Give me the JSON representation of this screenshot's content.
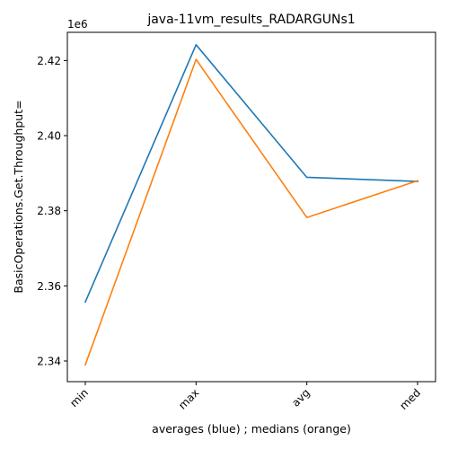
{
  "chart_data": {
    "type": "line",
    "title": "java-11vm_results_RADARGUNs1",
    "xlabel": "averages (blue) ; medians (orange)",
    "ylabel": "BasicOperations.Get.Throughput=",
    "y_offset_label": "1e6",
    "categories": [
      "min",
      "max",
      "avg",
      "med"
    ],
    "ylim": [
      2.3345,
      2.4275
    ],
    "yticks": [
      2.34,
      2.36,
      2.38,
      2.4,
      2.42
    ],
    "ytick_labels": [
      "2.34",
      "2.36",
      "2.38",
      "2.40",
      "2.42"
    ],
    "grid": false,
    "series": [
      {
        "color": "#1f77b4",
        "values": [
          2.3557,
          2.4242,
          2.3889,
          2.3878
        ]
      },
      {
        "color": "#ff7f0e",
        "values": [
          2.339,
          2.4203,
          2.3782,
          2.388
        ]
      }
    ]
  }
}
